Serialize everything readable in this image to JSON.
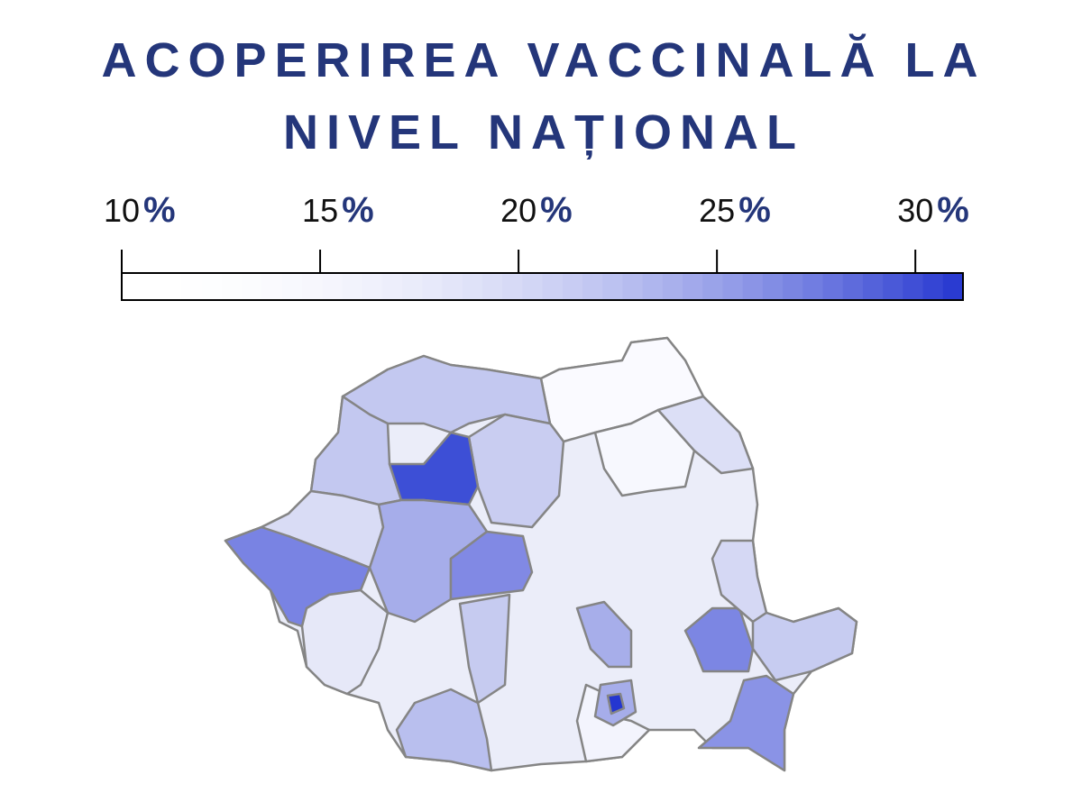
{
  "legend": {
    "title_lines": [
      "ACOPERIREA VACCINALĂ LA",
      "NIVEL NAȚIONAL"
    ],
    "unit": "%",
    "ticks": [
      10,
      15,
      20,
      25,
      30
    ],
    "lim": [
      10,
      31.2
    ],
    "colors": [
      "#ffffff",
      "#2436d0"
    ]
  }
}
